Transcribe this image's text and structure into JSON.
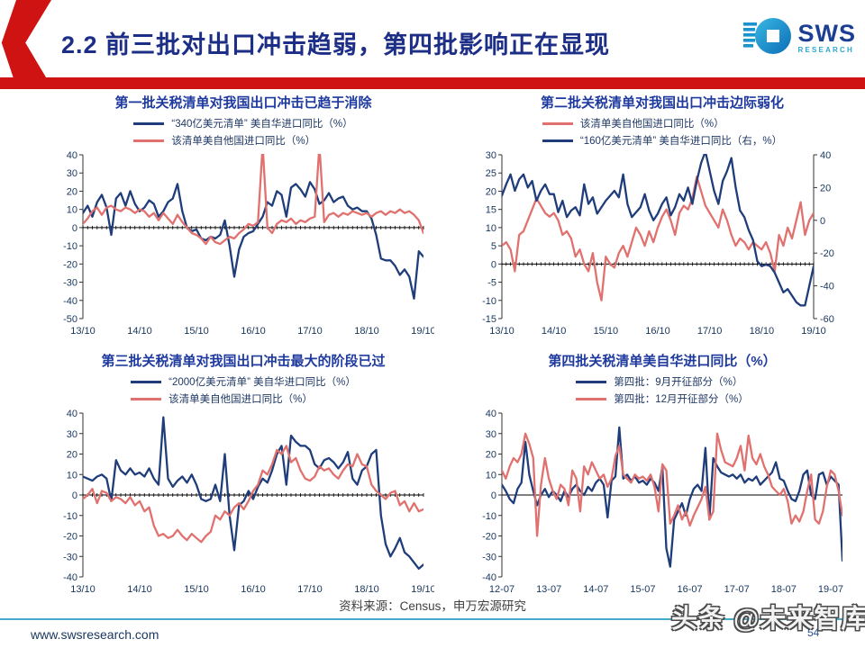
{
  "slide": {
    "header": {
      "title": "2.2 前三批对出口冲击趋弱，第四批影响正在显现"
    },
    "logo": {
      "name": "SWS",
      "subtitle": "RESEARCH"
    },
    "footer": {
      "source": "资料来源：Census，申万宏源研究",
      "website": "www.swsresearch.com",
      "page_number": "54",
      "watermark": "头条 @未来智库"
    },
    "colors": {
      "line_navy": "#1f3d7a",
      "line_salmon": "#e0716e",
      "accent_red": "#cf1212",
      "header_blue": "#1c2e86",
      "chart_title_blue": "#1e3a9e",
      "footer_teal": "#45aac9"
    }
  },
  "chart_data": [
    {
      "type": "line",
      "title": "第一批关税清单对我国出口冲击已趋于消除",
      "x_tick_labels": [
        "13/10",
        "14/10",
        "15/10",
        "16/10",
        "17/10",
        "18/10",
        "19/10"
      ],
      "x_tick_every": 12,
      "n_points": 73,
      "y_left": {
        "min": -50,
        "max": 40,
        "ticks": [
          40,
          30,
          20,
          10,
          0,
          -10,
          -20,
          -30,
          -40,
          -50
        ]
      },
      "y_right": null,
      "zero_axis_ticks": true,
      "series": [
        {
          "name": "“340亿美元清单” 美自华进口同比（%）",
          "color": "#1f3d7a",
          "axis": "left",
          "values": [
            8,
            12,
            6,
            14,
            18,
            11,
            -4,
            16,
            19,
            12,
            20,
            13,
            9,
            11,
            15,
            13,
            6,
            9,
            14,
            16,
            24,
            9,
            0,
            -2,
            -1,
            -6,
            -7,
            -5,
            -6,
            -4,
            4,
            -10,
            -27,
            -12,
            -5,
            -3,
            -2,
            2,
            6,
            14,
            12,
            20,
            18,
            6,
            22,
            24,
            21,
            17,
            25,
            21,
            13,
            15,
            19,
            14,
            16,
            17,
            12,
            10,
            11,
            9,
            9,
            5,
            -4,
            -17,
            -18,
            -18,
            -21,
            -26,
            -23,
            -27,
            -39,
            -13,
            -16
          ]
        },
        {
          "name": "该清单美自他国进口同比（%）",
          "color": "#e0716e",
          "axis": "left",
          "values": [
            2,
            5,
            9,
            11,
            7,
            11,
            12,
            10,
            9,
            11,
            10,
            8,
            10,
            9,
            6,
            8,
            4,
            8,
            5,
            2,
            7,
            3,
            0,
            -3,
            -4,
            -6,
            -9,
            -5,
            -8,
            -9,
            -7,
            -5,
            -6,
            -3,
            -1,
            2,
            1,
            3,
            45,
            0,
            -3,
            2,
            4,
            3,
            5,
            2,
            4,
            3,
            5,
            6,
            45,
            3,
            7,
            8,
            6,
            8,
            7,
            9,
            8,
            7,
            8,
            6,
            8,
            9,
            7,
            9,
            8,
            10,
            8,
            9,
            7,
            4,
            -3
          ]
        }
      ]
    },
    {
      "type": "line",
      "title": "第二批关税清单对我国出口冲击边际弱化",
      "x_tick_labels": [
        "13/10",
        "14/10",
        "15/10",
        "16/10",
        "17/10",
        "18/10",
        "19/10"
      ],
      "x_tick_every": 12,
      "n_points": 73,
      "y_left": {
        "min": -15,
        "max": 30,
        "ticks": [
          30,
          25,
          20,
          15,
          10,
          5,
          0,
          -5,
          -10,
          -15
        ]
      },
      "y_right": {
        "min": -60,
        "max": 40,
        "ticks": [
          40,
          20,
          0,
          -20,
          -40,
          -60
        ]
      },
      "zero_axis_ticks": true,
      "series": [
        {
          "name": "该清单美自他国进口同比（%）",
          "color": "#e0716e",
          "axis": "left",
          "values": [
            5,
            6,
            4,
            -2,
            8,
            9,
            12,
            15,
            18,
            16,
            14,
            13,
            14,
            12,
            8,
            9,
            7,
            2,
            4,
            0,
            -2,
            3,
            -5,
            -10,
            2,
            0,
            -1,
            3,
            5,
            2,
            6,
            10,
            8,
            5,
            9,
            6,
            10,
            13,
            15,
            12,
            8,
            14,
            16,
            15,
            18,
            24,
            20,
            16,
            14,
            12,
            10,
            15,
            12,
            8,
            5,
            7,
            6,
            4,
            6,
            5,
            4,
            6,
            3,
            -2,
            8,
            5,
            10,
            7,
            12,
            17,
            8,
            12,
            14
          ]
        },
        {
          "name": "“160亿美元清单” 美自华进口同比（右，%）",
          "color": "#1f3d7a",
          "axis": "right",
          "values": [
            15,
            22,
            28,
            18,
            25,
            28,
            20,
            24,
            12,
            18,
            22,
            16,
            16,
            5,
            12,
            2,
            6,
            8,
            3,
            22,
            10,
            14,
            4,
            8,
            12,
            15,
            18,
            14,
            28,
            10,
            2,
            5,
            8,
            16,
            6,
            0,
            4,
            10,
            14,
            3,
            8,
            16,
            12,
            20,
            10,
            24,
            35,
            42,
            30,
            18,
            10,
            24,
            30,
            38,
            20,
            6,
            2,
            -6,
            -12,
            -25,
            -28,
            -27,
            -28,
            -32,
            -38,
            -44,
            -42,
            -46,
            -50,
            -52,
            -52,
            -40,
            -28
          ]
        }
      ]
    },
    {
      "type": "line",
      "title": "第三批关税清单对我国出口冲击最大的阶段已过",
      "x_tick_labels": [
        "13/10",
        "14/10",
        "15/10",
        "16/10",
        "17/10",
        "18/10",
        "19/10"
      ],
      "x_tick_every": 12,
      "n_points": 73,
      "y_left": {
        "min": -40,
        "max": 40,
        "ticks": [
          40,
          30,
          20,
          10,
          0,
          -10,
          -20,
          -30,
          -40
        ]
      },
      "y_right": null,
      "zero_axis_ticks": true,
      "series": [
        {
          "name": "“2000亿美元清单” 美自华进口同比（%）",
          "color": "#1f3d7a",
          "axis": "left",
          "values": [
            9,
            8,
            7,
            9,
            10,
            8,
            -3,
            17,
            12,
            10,
            13,
            10,
            11,
            9,
            13,
            8,
            5,
            38,
            8,
            4,
            7,
            9,
            6,
            10,
            5,
            -2,
            -3,
            -2,
            5,
            -3,
            20,
            -10,
            -27,
            -5,
            -3,
            2,
            -2,
            4,
            8,
            6,
            12,
            20,
            24,
            5,
            29,
            26,
            24,
            24,
            22,
            15,
            13,
            17,
            18,
            16,
            13,
            16,
            21,
            8,
            5,
            12,
            14,
            20,
            22,
            -10,
            -24,
            -30,
            -26,
            -21,
            -28,
            -30,
            -33,
            -36,
            -34
          ]
        },
        {
          "name": "该清单美自他国进口同比（%）",
          "color": "#e0716e",
          "axis": "left",
          "values": [
            -2,
            0,
            3,
            -4,
            2,
            1,
            -3,
            -1,
            -2,
            -4,
            -1,
            -5,
            -3,
            -8,
            -6,
            -15,
            -20,
            -19,
            -21,
            -20,
            -17,
            -20,
            -22,
            -19,
            -21,
            -23,
            -20,
            -18,
            -10,
            -12,
            -8,
            -10,
            -6,
            -4,
            -7,
            -3,
            2,
            5,
            12,
            10,
            15,
            22,
            20,
            24,
            16,
            18,
            12,
            8,
            7,
            9,
            14,
            12,
            13,
            10,
            8,
            12,
            15,
            14,
            20,
            15,
            14,
            5,
            2,
            0,
            -2,
            1,
            2,
            -5,
            -3,
            -8,
            -4,
            -8,
            -7
          ]
        }
      ]
    },
    {
      "type": "line",
      "title": "第四批关税清单美自华进口同比（%）",
      "x_tick_labels": [
        "12-07",
        "13-07",
        "14-07",
        "15-07",
        "16-07",
        "17-07",
        "18-07",
        "19-07"
      ],
      "x_tick_every": 12,
      "n_points": 88,
      "y_left": {
        "min": -40,
        "max": 40,
        "ticks": [
          40,
          30,
          20,
          10,
          0,
          -10,
          -20,
          -30,
          -40
        ]
      },
      "y_right": null,
      "zero_axis_ticks": false,
      "series": [
        {
          "name": "第四批：9月开征部分（%）",
          "color": "#1f3d7a",
          "axis": "left",
          "values": [
            5,
            2,
            -2,
            -4,
            3,
            6,
            26,
            10,
            2,
            -5,
            0,
            3,
            -1,
            2,
            0,
            -3,
            2,
            -1,
            3,
            5,
            2,
            0,
            4,
            2,
            6,
            8,
            5,
            -11,
            7,
            9,
            33,
            8,
            10,
            7,
            9,
            6,
            7,
            5,
            8,
            6,
            2,
            14,
            -26,
            -35,
            -12,
            -8,
            -4,
            -10,
            -2,
            3,
            5,
            2,
            23,
            -12,
            18,
            14,
            11,
            10,
            9,
            10,
            8,
            10,
            6,
            8,
            7,
            9,
            5,
            7,
            9,
            11,
            16,
            8,
            7,
            2,
            -2,
            -3,
            2,
            10,
            12,
            0,
            -2,
            10,
            11,
            5,
            9,
            7,
            5,
            -32
          ]
        },
        {
          "name": "第四批：12月开征部分（%）",
          "color": "#e0716e",
          "axis": "left",
          "values": [
            12,
            8,
            14,
            18,
            16,
            20,
            30,
            25,
            18,
            -20,
            5,
            18,
            8,
            2,
            -2,
            5,
            3,
            -5,
            12,
            8,
            -8,
            14,
            10,
            16,
            12,
            8,
            10,
            4,
            8,
            19,
            24,
            10,
            8,
            6,
            10,
            8,
            9,
            7,
            10,
            4,
            -8,
            15,
            12,
            -14,
            -10,
            -5,
            -12,
            -8,
            -15,
            -10,
            -6,
            -2,
            4,
            -12,
            -8,
            30,
            22,
            16,
            15,
            14,
            18,
            24,
            12,
            29,
            18,
            15,
            20,
            14,
            10,
            4,
            2,
            0,
            3,
            -3,
            -14,
            -10,
            -13,
            -8,
            2,
            10,
            -12,
            -14,
            -8,
            4,
            12,
            10,
            2,
            -10
          ]
        }
      ]
    }
  ]
}
